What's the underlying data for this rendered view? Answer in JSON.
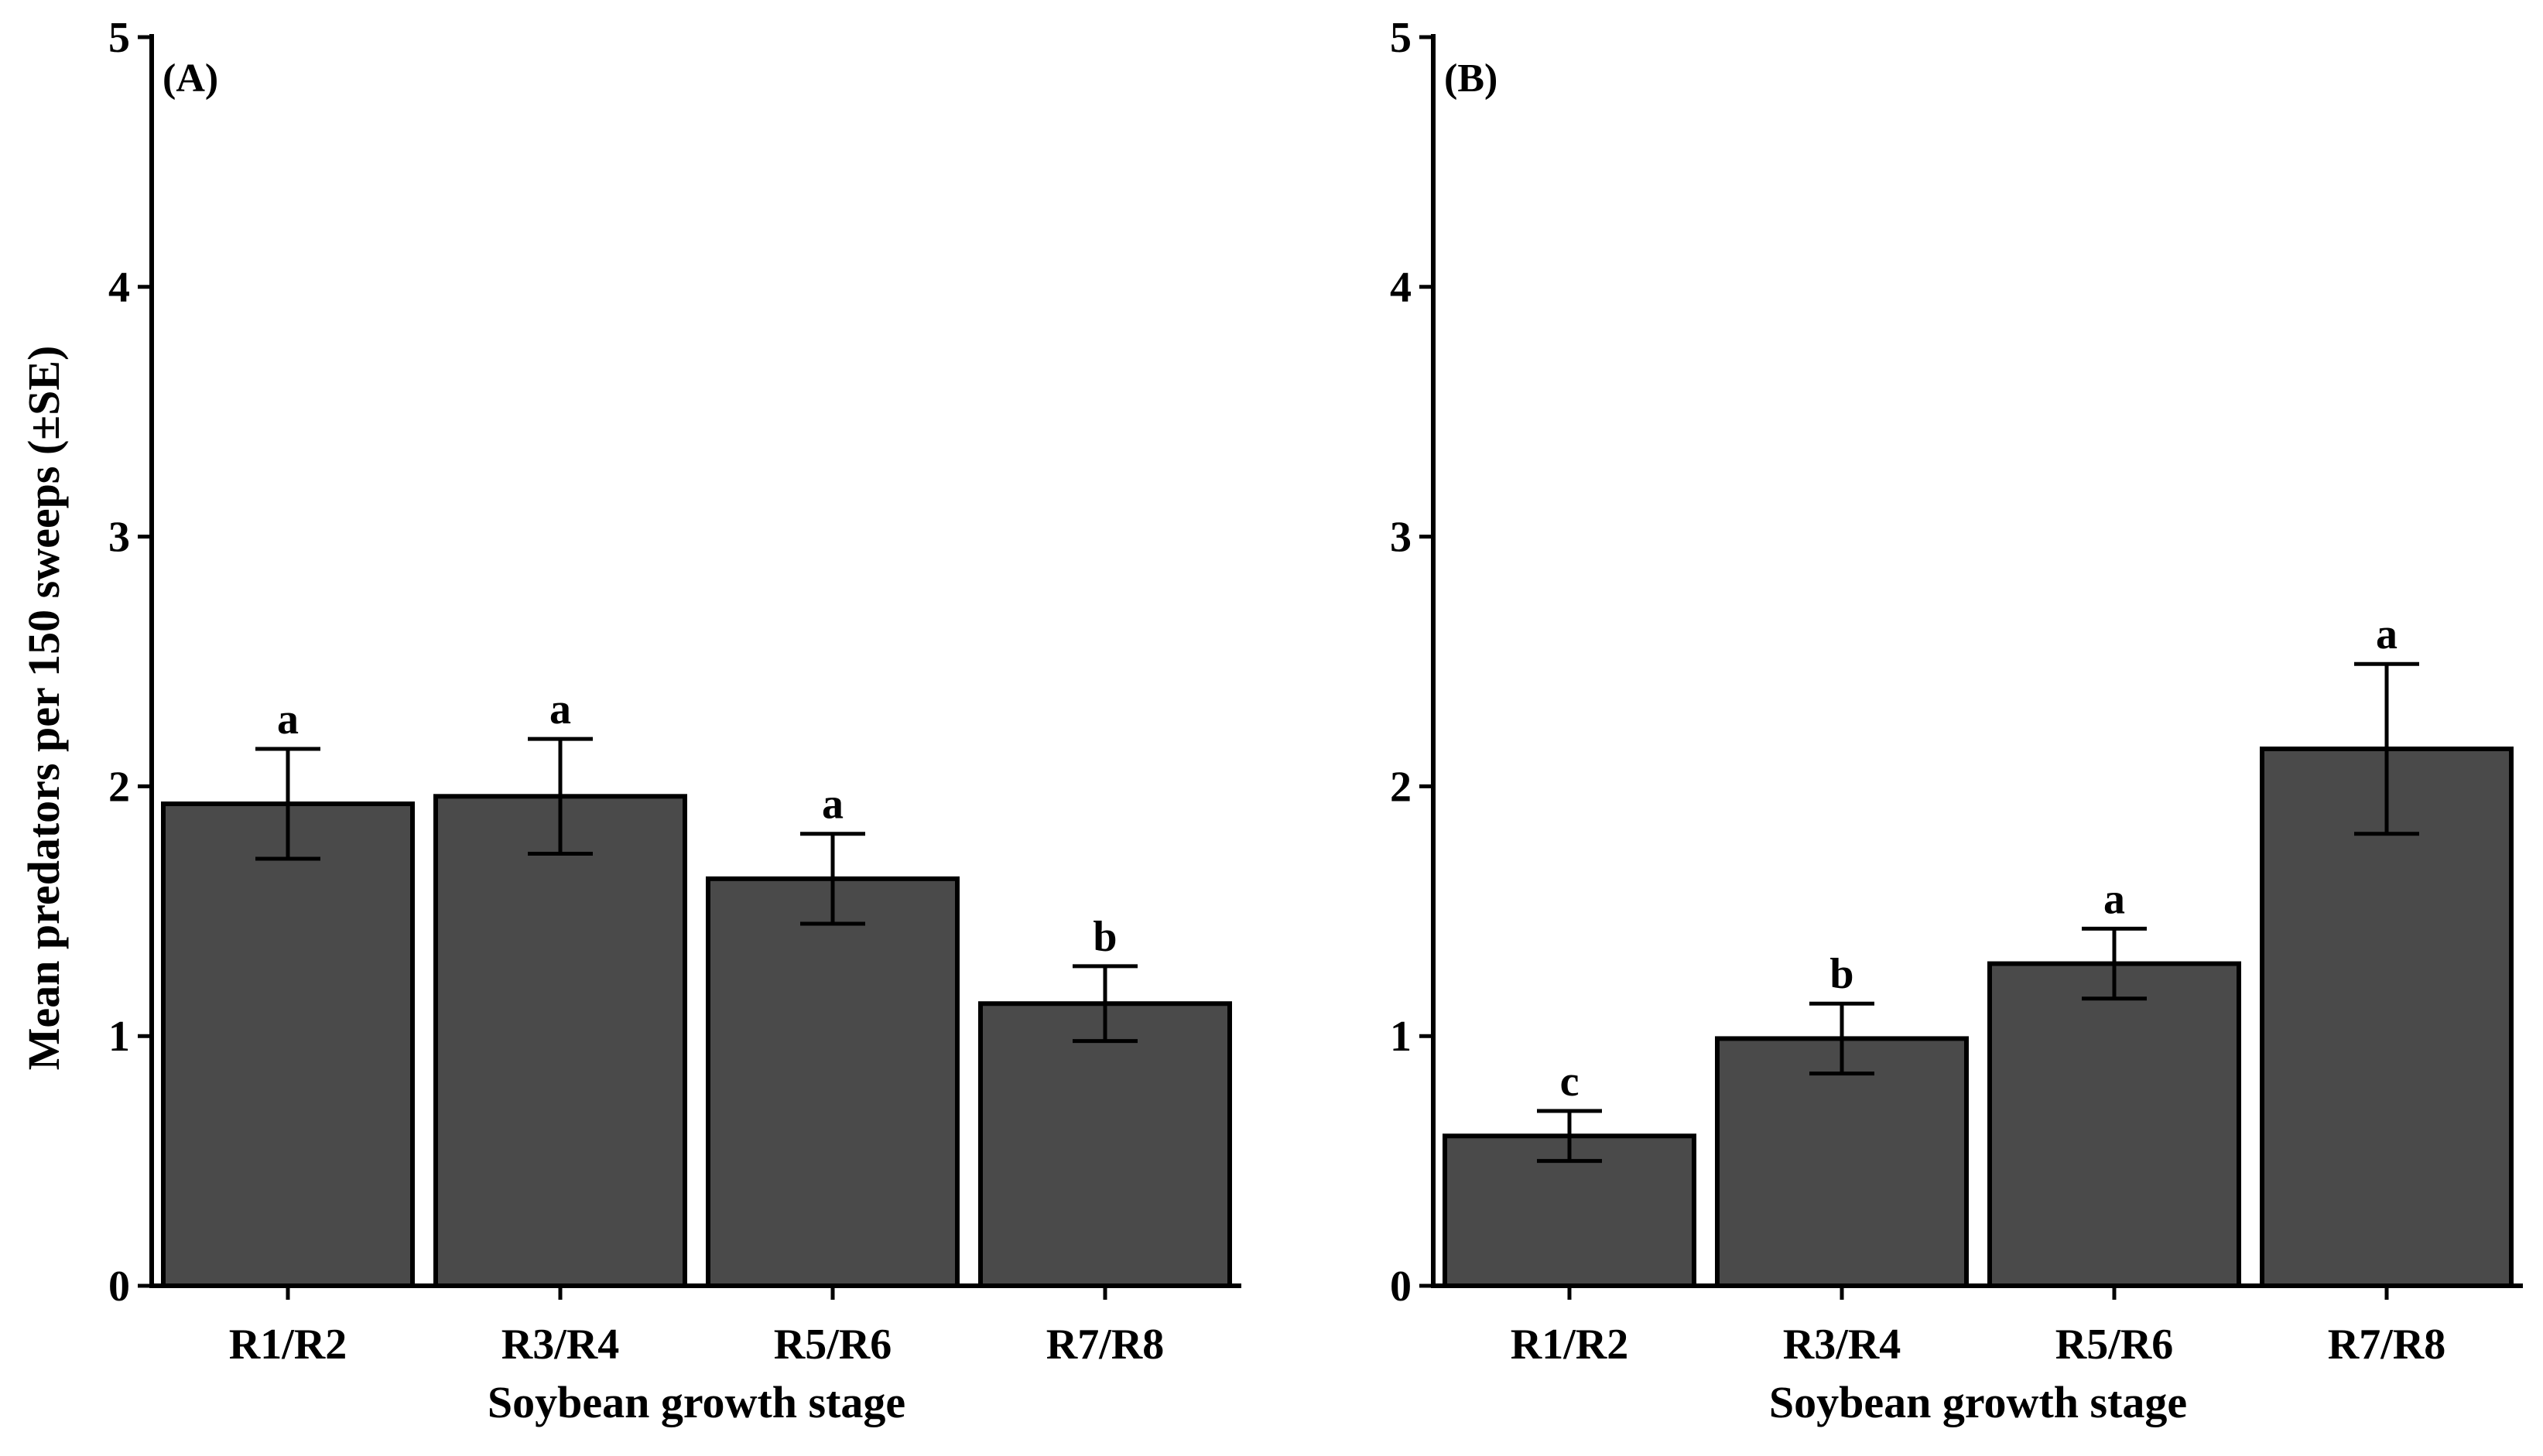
{
  "colors": {
    "bar_fill": "#4a4a4a",
    "bar_stroke": "#000000",
    "axis": "#000000"
  },
  "chart_data": [
    {
      "type": "bar",
      "panel_label": "(A)",
      "title": "",
      "categories": [
        "R1/R2",
        "R3/R4",
        "R5/R6",
        "R7/R8"
      ],
      "values": [
        1.93,
        1.96,
        1.63,
        1.13
      ],
      "errors": [
        0.22,
        0.23,
        0.18,
        0.15
      ],
      "significance": [
        "a",
        "a",
        "a",
        "b"
      ],
      "xlabel": "Soybean growth stage",
      "ylabel": "Mean predators per 150 sweeps (±SE)",
      "ylim": [
        0,
        5
      ],
      "yticks": [
        "0",
        "1",
        "2",
        "3",
        "4",
        "5"
      ],
      "grid": false
    },
    {
      "type": "bar",
      "panel_label": "(B)",
      "title": "",
      "categories": [
        "R1/R2",
        "R3/R4",
        "R5/R6",
        "R7/R8"
      ],
      "values": [
        0.6,
        0.99,
        1.29,
        2.15
      ],
      "errors": [
        0.1,
        0.14,
        0.14,
        0.34
      ],
      "significance": [
        "c",
        "b",
        "a",
        "a"
      ],
      "xlabel": "Soybean growth stage",
      "ylabel": "",
      "ylim": [
        0,
        5
      ],
      "yticks": [
        "0",
        "1",
        "2",
        "3",
        "4",
        "5"
      ],
      "grid": false
    }
  ]
}
